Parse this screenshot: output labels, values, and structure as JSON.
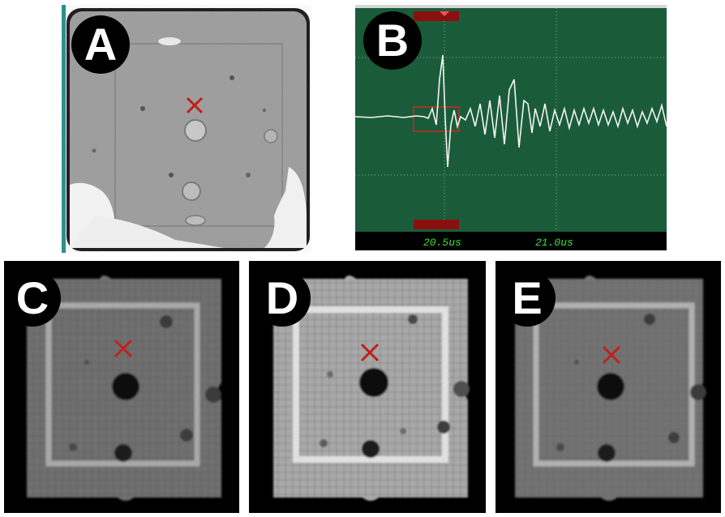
{
  "panels": {
    "a": {
      "label": "A"
    },
    "b": {
      "label": "B",
      "time_ticks": [
        "20.5us",
        "21.0us"
      ]
    },
    "c": {
      "label": "C"
    },
    "d": {
      "label": "D"
    },
    "e": {
      "label": "E"
    }
  },
  "colors": {
    "scope_background": "#1a5c3a",
    "trace": "#f4f4f4",
    "gate": "#c0301a",
    "marker": "#c0201a",
    "tick_text": "#3ee03e"
  }
}
